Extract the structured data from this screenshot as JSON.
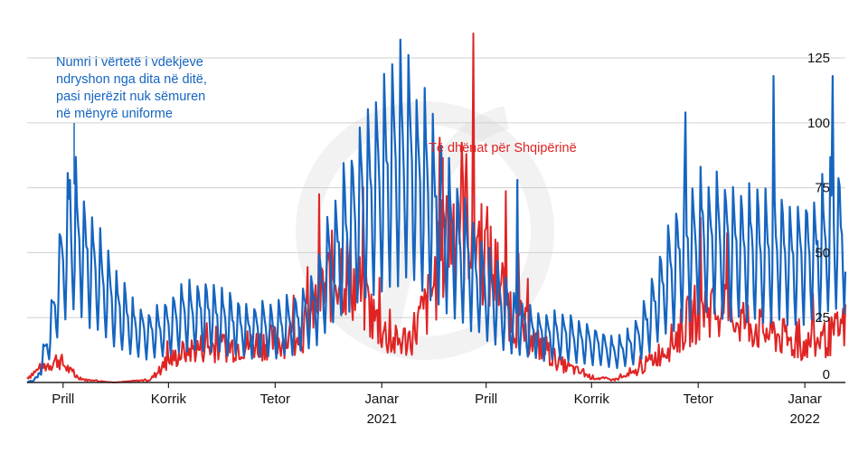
{
  "chart_data": {
    "type": "line",
    "title": "",
    "xlabel": "",
    "ylabel": "",
    "ylim": [
      0,
      130
    ],
    "grid": "horizontal",
    "y_axis_position": "right",
    "y_ticks": [
      "0",
      "25",
      "50",
      "75",
      "100",
      "125"
    ],
    "x_ticks": [
      {
        "label": "Prill",
        "year": ""
      },
      {
        "label": "Korrik",
        "year": ""
      },
      {
        "label": "Tetor",
        "year": ""
      },
      {
        "label": "Janar",
        "year": "2021"
      },
      {
        "label": "Prill",
        "year": ""
      },
      {
        "label": "Korrik",
        "year": ""
      },
      {
        "label": "Tetor",
        "year": ""
      },
      {
        "label": "Janar",
        "year": "2022"
      }
    ],
    "x_range": [
      "2020-03-01",
      "2022-02-05"
    ],
    "annotations": {
      "blue": [
        "Numri i vërtetë i vdekjeve",
        "ndryshon nga dita në ditë,",
        "pasi njerëzit nuk sëmuren",
        "në mënyrë uniforme"
      ],
      "red": "Të dhënat për Shqipërinë"
    },
    "colors": {
      "blue": "#1565c0",
      "red": "#e02424",
      "grid": "#d0d0d0",
      "axis": "#222222"
    },
    "series": [
      {
        "color": "#1565c0",
        "weekly_pattern": [
          1.3,
          1.15,
          1.0,
          0.92,
          0.62,
          0.42,
          0.72
        ],
        "anchors": [
          [
            "2020-03-01",
            0
          ],
          [
            "2020-03-10",
            2
          ],
          [
            "2020-03-20",
            20
          ],
          [
            "2020-03-28",
            42
          ],
          [
            "2020-04-05",
            62
          ],
          [
            "2020-04-12",
            64
          ],
          [
            "2020-04-20",
            56
          ],
          [
            "2020-05-01",
            46
          ],
          [
            "2020-05-15",
            33
          ],
          [
            "2020-06-01",
            24
          ],
          [
            "2020-06-15",
            21
          ],
          [
            "2020-07-01",
            25
          ],
          [
            "2020-07-15",
            30
          ],
          [
            "2020-08-01",
            30
          ],
          [
            "2020-08-20",
            26
          ],
          [
            "2020-09-10",
            23
          ],
          [
            "2020-10-01",
            23
          ],
          [
            "2020-10-20",
            26
          ],
          [
            "2020-11-05",
            35
          ],
          [
            "2020-11-20",
            52
          ],
          [
            "2020-12-05",
            68
          ],
          [
            "2020-12-20",
            78
          ],
          [
            "2021-01-05",
            88
          ],
          [
            "2021-01-20",
            94
          ],
          [
            "2021-02-05",
            85
          ],
          [
            "2021-02-20",
            72
          ],
          [
            "2021-03-10",
            57
          ],
          [
            "2021-03-25",
            45
          ],
          [
            "2021-04-10",
            35
          ],
          [
            "2021-04-25",
            26
          ],
          [
            "2021-05-15",
            21
          ],
          [
            "2021-06-05",
            20
          ],
          [
            "2021-07-01",
            17
          ],
          [
            "2021-07-20",
            13
          ],
          [
            "2021-08-05",
            16
          ],
          [
            "2021-08-20",
            28
          ],
          [
            "2021-09-05",
            45
          ],
          [
            "2021-09-20",
            58
          ],
          [
            "2021-10-05",
            62
          ],
          [
            "2021-10-25",
            60
          ],
          [
            "2021-11-10",
            56
          ],
          [
            "2021-11-25",
            55
          ],
          [
            "2021-12-10",
            58
          ],
          [
            "2021-12-25",
            52
          ],
          [
            "2022-01-10",
            55
          ],
          [
            "2022-01-25",
            65
          ],
          [
            "2022-02-05",
            62
          ]
        ],
        "spikes": [
          [
            "2020-04-07",
            78
          ],
          [
            "2021-01-17",
            132
          ],
          [
            "2021-04-28",
            78
          ],
          [
            "2021-09-20",
            104
          ],
          [
            "2021-12-05",
            118
          ],
          [
            "2022-01-25",
            118
          ]
        ]
      },
      {
        "color": "#e02424",
        "anchors": [
          [
            "2020-03-01",
            2
          ],
          [
            "2020-03-15",
            6
          ],
          [
            "2020-03-28",
            9
          ],
          [
            "2020-04-10",
            3
          ],
          [
            "2020-04-20",
            1
          ],
          [
            "2020-05-15",
            0
          ],
          [
            "2020-06-15",
            1
          ],
          [
            "2020-07-01",
            8
          ],
          [
            "2020-07-15",
            12
          ],
          [
            "2020-08-05",
            14
          ],
          [
            "2020-08-25",
            14
          ],
          [
            "2020-09-15",
            15
          ],
          [
            "2020-10-05",
            16
          ],
          [
            "2020-10-25",
            20
          ],
          [
            "2020-11-10",
            34
          ],
          [
            "2020-11-25",
            45
          ],
          [
            "2020-12-10",
            38
          ],
          [
            "2020-12-25",
            25
          ],
          [
            "2021-01-10",
            15
          ],
          [
            "2021-01-25",
            17
          ],
          [
            "2021-02-10",
            30
          ],
          [
            "2021-02-25",
            55
          ],
          [
            "2021-03-10",
            68
          ],
          [
            "2021-03-25",
            56
          ],
          [
            "2021-04-10",
            40
          ],
          [
            "2021-04-25",
            25
          ],
          [
            "2021-05-15",
            15
          ],
          [
            "2021-06-05",
            7
          ],
          [
            "2021-07-01",
            2
          ],
          [
            "2021-07-20",
            1
          ],
          [
            "2021-08-05",
            3
          ],
          [
            "2021-08-20",
            8
          ],
          [
            "2021-09-05",
            14
          ],
          [
            "2021-09-20",
            22
          ],
          [
            "2021-10-05",
            30
          ],
          [
            "2021-10-25",
            26
          ],
          [
            "2021-11-10",
            24
          ],
          [
            "2021-11-25",
            20
          ],
          [
            "2021-12-10",
            18
          ],
          [
            "2021-12-25",
            14
          ],
          [
            "2022-01-10",
            15
          ],
          [
            "2022-01-25",
            18
          ],
          [
            "2022-02-05",
            22
          ]
        ]
      }
    ]
  }
}
